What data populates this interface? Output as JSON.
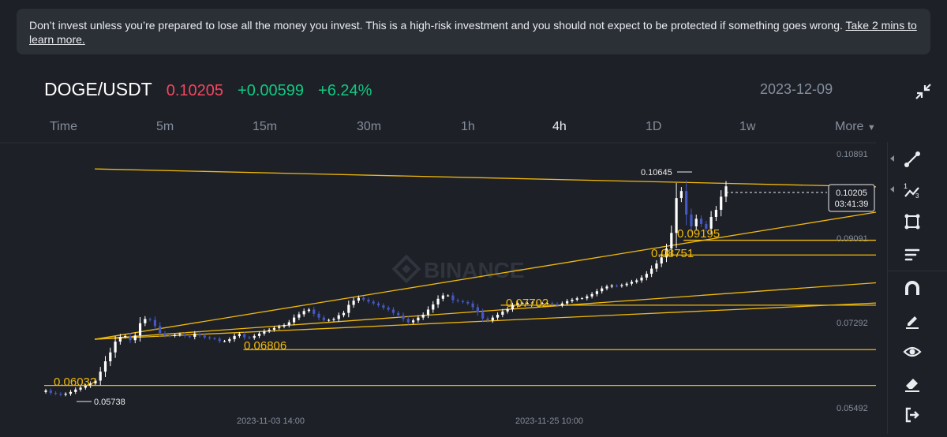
{
  "banner": {
    "text": "Don’t invest unless you’re prepared to lose all the money you invest. This is a high-risk investment and you should not expect to be protected if something goes wrong.",
    "link": "Take 2 mins to learn more."
  },
  "header": {
    "pair": "DOGE/USDT",
    "price": "0.10205",
    "change": "+0.00599",
    "change_pct": "+6.24%",
    "date": "2023-12-09"
  },
  "tabs": [
    "Time",
    "5m",
    "15m",
    "30m",
    "1h",
    "4h",
    "1D",
    "1w",
    "More"
  ],
  "active_tab": "4h",
  "chart": {
    "watermark": "BINANCE",
    "price_axis": [
      "0.10891",
      "0.09091",
      "0.07292",
      "0.05492"
    ],
    "time_axis": [
      "2023-11-03 14:00",
      "2023-11-25 10:00"
    ],
    "current_price": "0.10205",
    "countdown": "03:41:39",
    "high_label": "0.10645",
    "low_label": "0.05738",
    "level_labels": [
      "0.06032",
      "0.06806",
      "0.07702",
      "0.08751",
      "0.09195"
    ]
  },
  "colors": {
    "up": "#ffffff",
    "down": "#4458c4",
    "lines": "#f0b90b",
    "price_red": "#f6465d",
    "price_green": "#0ecb81"
  },
  "chart_data": {
    "type": "candlestick",
    "symbol": "DOGE/USDT",
    "interval": "4h",
    "y_ticks": [
      0.10891,
      0.09091,
      0.07292,
      0.05492
    ],
    "x_ticks": [
      "2023-11-03 14:00",
      "2023-11-25 10:00"
    ],
    "close_profile": [
      0.0586,
      0.0581,
      0.0579,
      0.0577,
      0.0579,
      0.0583,
      0.0588,
      0.0592,
      0.0596,
      0.0601,
      0.0607,
      0.0626,
      0.0648,
      0.0667,
      0.069,
      0.07,
      0.0702,
      0.0693,
      0.0703,
      0.0729,
      0.0738,
      0.0736,
      0.0723,
      0.0708,
      0.0703,
      0.0702,
      0.0704,
      0.0706,
      0.0702,
      0.07,
      0.0707,
      0.0703,
      0.0699,
      0.0697,
      0.0696,
      0.0691,
      0.0691,
      0.0695,
      0.0702,
      0.0706,
      0.0699,
      0.0698,
      0.0702,
      0.0707,
      0.0712,
      0.0715,
      0.0719,
      0.0722,
      0.0725,
      0.0731,
      0.0741,
      0.0748,
      0.0755,
      0.0758,
      0.0749,
      0.0741,
      0.0735,
      0.0736,
      0.0738,
      0.0746,
      0.0751,
      0.0768,
      0.0777,
      0.0783,
      0.0779,
      0.0775,
      0.0771,
      0.0767,
      0.0762,
      0.0758,
      0.0751,
      0.0746,
      0.0738,
      0.0731,
      0.0735,
      0.0741,
      0.0747,
      0.0758,
      0.0769,
      0.0781,
      0.0788,
      0.0788,
      0.0778,
      0.0776,
      0.0774,
      0.0771,
      0.0763,
      0.0752,
      0.0739,
      0.0735,
      0.0741,
      0.0747,
      0.0754,
      0.0759,
      0.0767,
      0.0772,
      0.0772,
      0.0772,
      0.0773,
      0.0772,
      0.0772,
      0.0772,
      0.077,
      0.0767,
      0.0771,
      0.0776,
      0.0779,
      0.0782,
      0.0782,
      0.0786,
      0.0791,
      0.0797,
      0.0803,
      0.0807,
      0.0809,
      0.0808,
      0.081,
      0.0813,
      0.0817,
      0.082,
      0.0826,
      0.0834,
      0.0845,
      0.0856,
      0.0869,
      0.0888,
      0.0921,
      0.0995,
      0.101,
      0.096,
      0.0935,
      0.0951,
      0.094,
      0.093,
      0.0955,
      0.097,
      0.0998,
      0.102
    ],
    "lines": [
      {
        "type": "horizontal",
        "label": "0.06032",
        "value": 0.05968
      },
      {
        "type": "horizontal",
        "label": "0.06806",
        "value": 0.06728
      },
      {
        "type": "horizontal",
        "label": "0.07702",
        "value": 0.07674
      },
      {
        "type": "horizontal",
        "label": "0.08751",
        "value": 0.0874
      },
      {
        "type": "horizontal",
        "label": "0.09195",
        "value": 0.09054
      },
      {
        "type": "trend",
        "from": [
          0.059,
          0.0695
        ],
        "to": [
          1.0,
          0.0815
        ]
      },
      {
        "type": "trend",
        "from": [
          0.059,
          0.0695
        ],
        "to": [
          1.0,
          0.0772
        ]
      },
      {
        "type": "trend",
        "from": [
          0.059,
          0.0695
        ],
        "to": [
          1.0,
          0.0965
        ]
      },
      {
        "type": "trend",
        "from": [
          0.059,
          0.1057
        ],
        "to": [
          1.0,
          0.1019
        ]
      }
    ]
  }
}
